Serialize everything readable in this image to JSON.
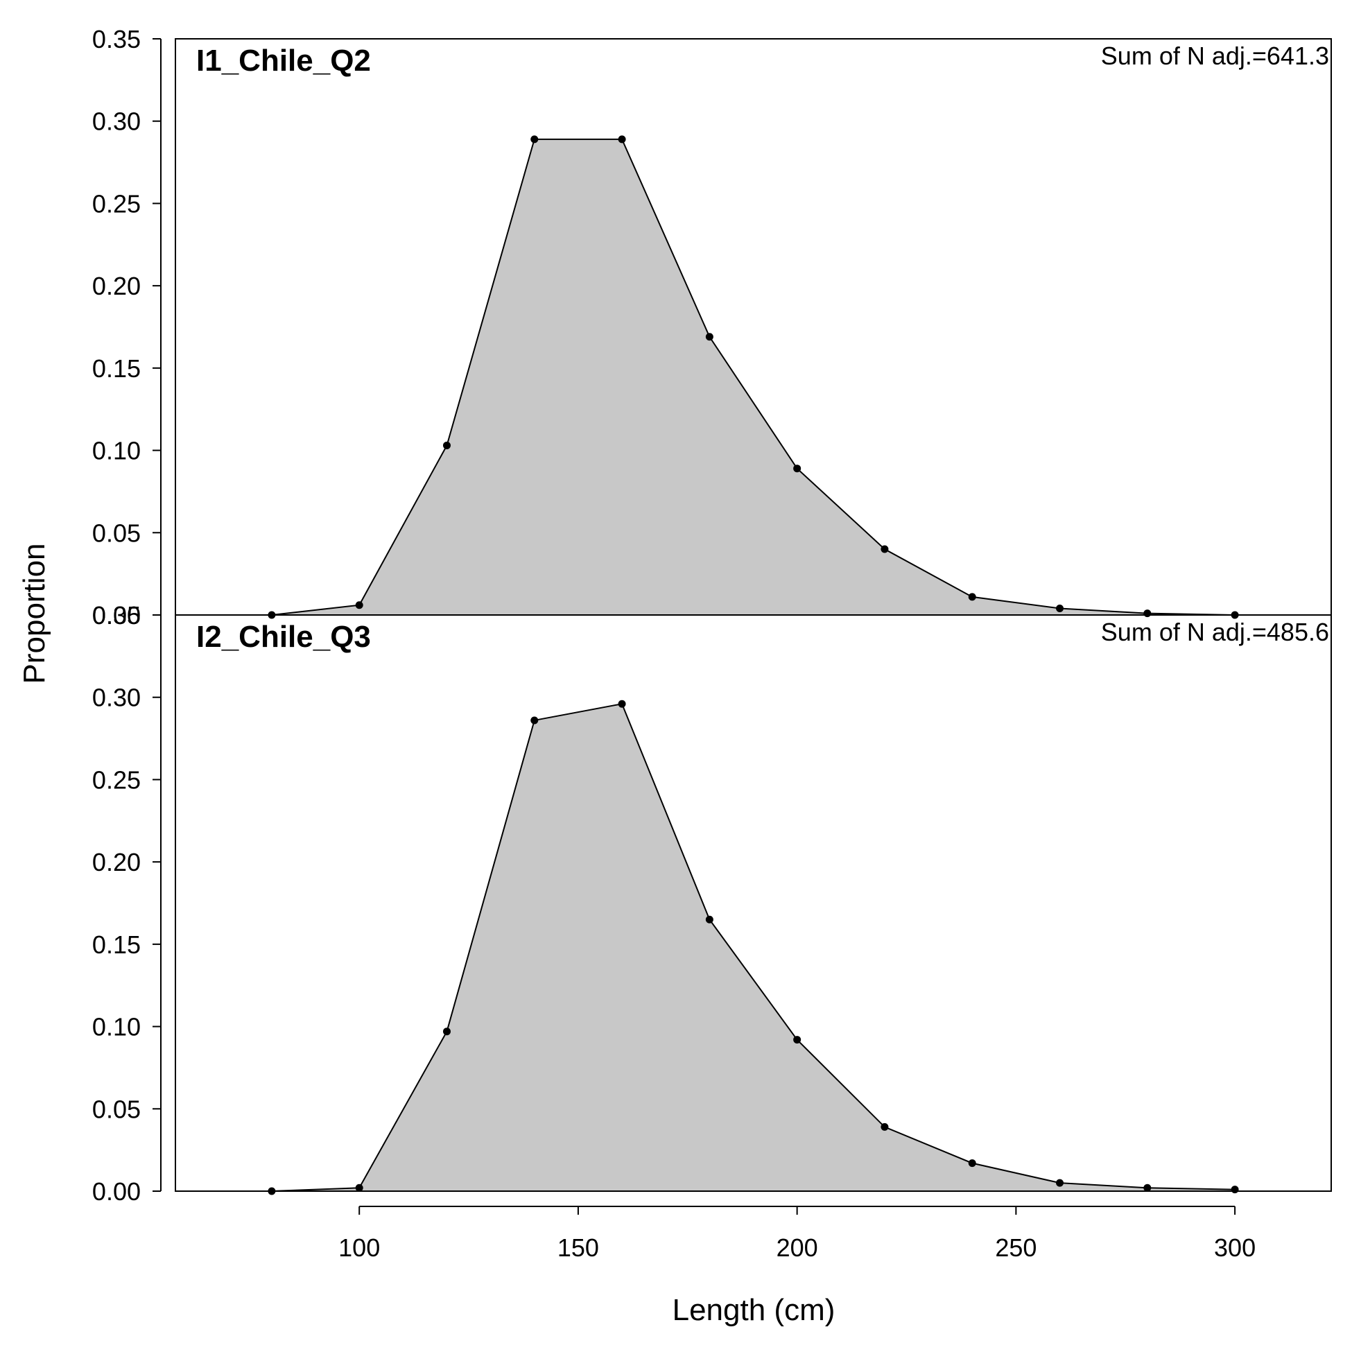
{
  "chart_data": {
    "type": "area",
    "xlabel": "Length (cm)",
    "ylabel": "Proportion",
    "xlim": [
      58,
      322
    ],
    "ylim": [
      0,
      0.35
    ],
    "x_ticks": [
      100,
      150,
      200,
      250,
      300
    ],
    "y_ticks": [
      0.0,
      0.05,
      0.1,
      0.15,
      0.2,
      0.25,
      0.3,
      0.35
    ],
    "y_tick_labels": [
      "0.00",
      "0.05",
      "0.10",
      "0.15",
      "0.20",
      "0.25",
      "0.30",
      "0.35"
    ],
    "grid": false,
    "fill_color": "#c8c8c8",
    "line_color": "#000000",
    "panels": [
      {
        "title": "I1_Chile_Q2",
        "annotation": "Sum of N adj.=641.3",
        "x": [
          80,
          100,
          120,
          140,
          160,
          180,
          200,
          220,
          240,
          260,
          280,
          300
        ],
        "values": [
          0.0,
          0.006,
          0.103,
          0.289,
          0.289,
          0.169,
          0.089,
          0.04,
          0.011,
          0.004,
          0.001,
          0.0
        ]
      },
      {
        "title": "I2_Chile_Q3",
        "annotation": "Sum of N adj.=485.6",
        "x": [
          80,
          100,
          120,
          140,
          160,
          180,
          200,
          220,
          240,
          260,
          280,
          300
        ],
        "values": [
          0.0,
          0.002,
          0.097,
          0.286,
          0.296,
          0.165,
          0.092,
          0.039,
          0.017,
          0.005,
          0.002,
          0.001
        ]
      }
    ]
  }
}
